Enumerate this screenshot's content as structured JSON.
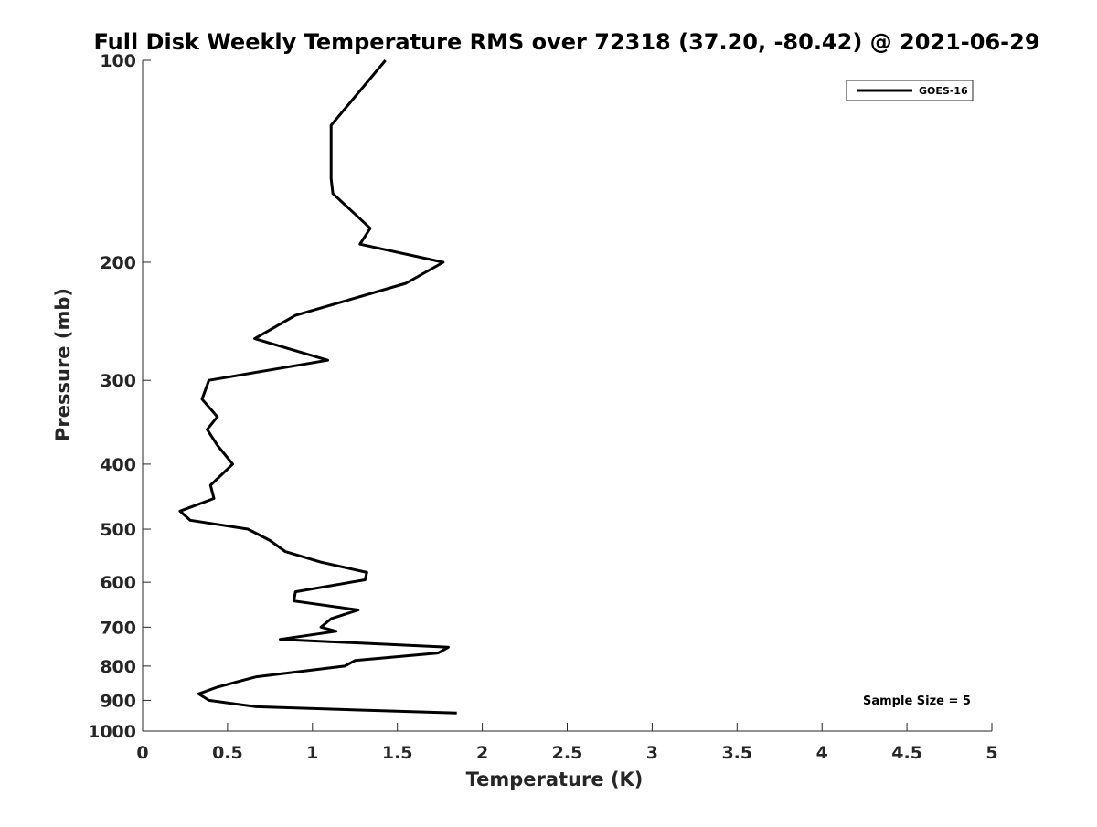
{
  "chart_data": {
    "type": "line",
    "title": "Full Disk Weekly Temperature RMS over 72318 (37.20, -80.42) @ 2021-06-29",
    "xlabel": "Temperature (K)",
    "ylabel": "Pressure (mb)",
    "xlim": [
      0,
      5
    ],
    "ylim": [
      1000,
      100
    ],
    "yscale": "log",
    "y_reversed": true,
    "xticks": [
      0,
      0.5,
      1,
      1.5,
      2,
      2.5,
      3,
      3.5,
      4,
      4.5,
      5
    ],
    "xtick_labels": [
      "0",
      "0.5",
      "1",
      "1.5",
      "2",
      "2.5",
      "3",
      "3.5",
      "4",
      "4.5",
      "5"
    ],
    "yticks": [
      100,
      200,
      300,
      400,
      500,
      600,
      700,
      800,
      900,
      1000
    ],
    "ytick_labels": [
      "100",
      "200",
      "300",
      "400",
      "500",
      "600",
      "700",
      "800",
      "900",
      "1000"
    ],
    "grid": false,
    "legend": {
      "placement": "top-right",
      "entries": [
        "GOES-16"
      ]
    },
    "annotation": "Sample Size = 5",
    "series": [
      {
        "name": "GOES-16",
        "color": "#000000",
        "points": [
          [
            1.43,
            100
          ],
          [
            1.11,
            125
          ],
          [
            1.11,
            150
          ],
          [
            1.12,
            158
          ],
          [
            1.34,
            178
          ],
          [
            1.28,
            188
          ],
          [
            1.77,
            200
          ],
          [
            1.55,
            215
          ],
          [
            0.9,
            240
          ],
          [
            0.66,
            260
          ],
          [
            1.09,
            280
          ],
          [
            0.39,
            300
          ],
          [
            0.35,
            320
          ],
          [
            0.44,
            340
          ],
          [
            0.38,
            355
          ],
          [
            0.44,
            375
          ],
          [
            0.53,
            400
          ],
          [
            0.4,
            430
          ],
          [
            0.42,
            450
          ],
          [
            0.22,
            470
          ],
          [
            0.28,
            485
          ],
          [
            0.62,
            500
          ],
          [
            0.75,
            520
          ],
          [
            0.84,
            540
          ],
          [
            1.05,
            560
          ],
          [
            1.32,
            580
          ],
          [
            1.31,
            595
          ],
          [
            0.9,
            620
          ],
          [
            0.89,
            640
          ],
          [
            1.27,
            660
          ],
          [
            1.11,
            680
          ],
          [
            1.05,
            700
          ],
          [
            1.14,
            710
          ],
          [
            0.81,
            730
          ],
          [
            1.8,
            750
          ],
          [
            1.74,
            765
          ],
          [
            1.25,
            785
          ],
          [
            1.19,
            800
          ],
          [
            0.67,
            830
          ],
          [
            0.44,
            860
          ],
          [
            0.33,
            880
          ],
          [
            0.39,
            900
          ],
          [
            0.67,
            920
          ],
          [
            1.85,
            940
          ]
        ]
      }
    ]
  }
}
